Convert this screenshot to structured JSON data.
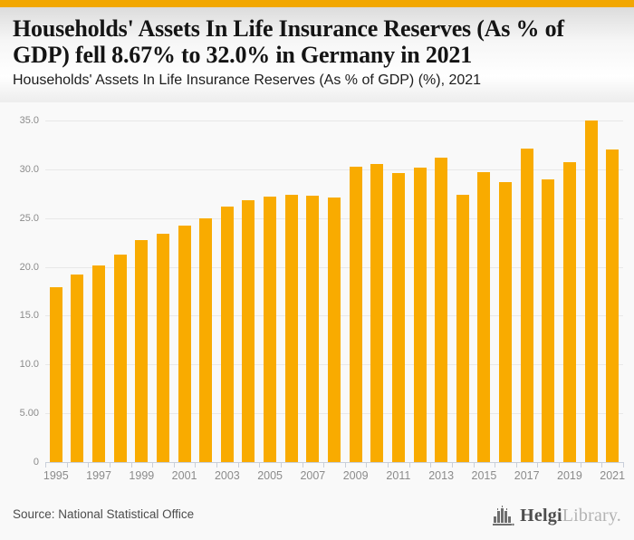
{
  "page": {
    "title": "Households' Assets In Life Insurance Reserves (As % of GDP) fell 8.67% to 32.0% in Germany in 2021",
    "subtitle": "Households' Assets In Life Insurance Reserves (As % of GDP) (%), 2021"
  },
  "footer": {
    "source": "Source: National Statistical Office",
    "logo": {
      "name": "HelgiLibrary",
      "text_primary": "Helgi",
      "text_secondary": "Library.",
      "icon": "bar-chart-logo-icon"
    }
  },
  "colors": {
    "top_strip": "#f2a702",
    "bar": "#f9ab00",
    "gridline": "#e8e8e8",
    "axis": "#c9cfda",
    "tick_label": "#8b8b8b"
  },
  "chart_data": {
    "type": "bar",
    "title": "Households' Assets In Life Insurance Reserves (As % of GDP) fell 8.67% to 32.0% in Germany in 2021",
    "subtitle": "Households' Assets In Life Insurance Reserves (As % of GDP) (%), 2021",
    "xlabel": "",
    "ylabel": "",
    "unit": "% of GDP",
    "x": [
      1995,
      1996,
      1997,
      1998,
      1999,
      2000,
      2001,
      2002,
      2003,
      2004,
      2005,
      2006,
      2007,
      2008,
      2009,
      2010,
      2011,
      2012,
      2013,
      2014,
      2015,
      2016,
      2017,
      2018,
      2019,
      2020,
      2021
    ],
    "values": [
      17.9,
      19.2,
      20.1,
      21.3,
      22.7,
      23.4,
      24.2,
      25.0,
      26.2,
      26.8,
      27.2,
      27.4,
      27.3,
      27.1,
      30.3,
      30.5,
      29.6,
      30.2,
      31.2,
      27.4,
      29.7,
      28.7,
      32.1,
      29.0,
      30.7,
      35.0,
      32.0
    ],
    "ylim": [
      0,
      35
    ],
    "ytick_step": 5,
    "ytick_labels": [
      "0",
      "5.00",
      "10.0",
      "15.0",
      "20.0",
      "25.0",
      "30.0",
      "35.0"
    ],
    "xtick_labels": [
      "1995",
      "1997",
      "1999",
      "2001",
      "2003",
      "2005",
      "2007",
      "2009",
      "2011",
      "2013",
      "2015",
      "2017",
      "2019",
      "2021"
    ],
    "grid": true,
    "legend": false,
    "bar_color": "#f9ab00"
  }
}
